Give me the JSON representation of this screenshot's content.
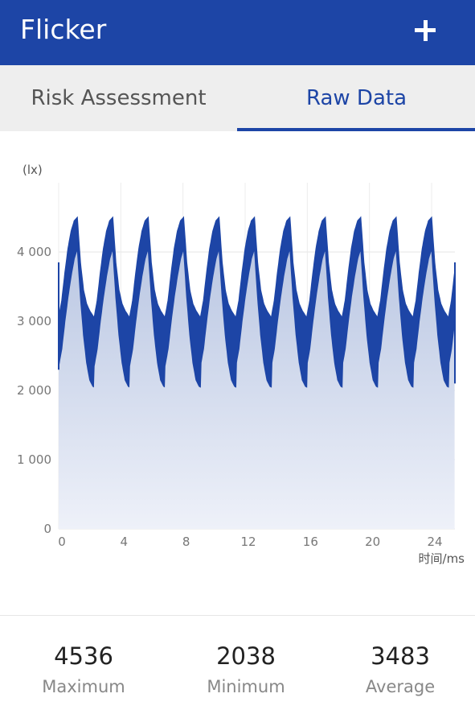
{
  "app_bar": {
    "title": "Flicker",
    "add_icon": "plus-icon"
  },
  "tabs": [
    {
      "label": "Risk Assessment",
      "selected": false
    },
    {
      "label": "Raw Data",
      "selected": true
    }
  ],
  "colors": {
    "primary": "#1d45a6",
    "tab_bg": "#eeeeee",
    "fill_top": "#b4c2e0",
    "fill_bottom": "#eef1f9"
  },
  "chart_data": {
    "type": "area",
    "ylabel": "(lx)",
    "xlabel": "时间/ms",
    "ylim": [
      0,
      5000
    ],
    "xlim": [
      0,
      25.5
    ],
    "y_ticks": [
      "0",
      "1 000",
      "2 000",
      "3 000",
      "4 000"
    ],
    "y_tick_values": [
      0,
      1000,
      2000,
      3000,
      4000
    ],
    "x_ticks": [
      "0",
      "4",
      "8",
      "12",
      "16",
      "20",
      "24"
    ],
    "x_tick_values": [
      0,
      4,
      8,
      12,
      16,
      20,
      24
    ],
    "grid": true,
    "series": [
      {
        "period_ms": 2.28,
        "peak": 4500,
        "trough": 2050,
        "x": [
          0,
          0.2,
          0.4,
          0.6,
          0.8,
          1.0,
          1.2,
          1.4,
          1.6,
          1.8,
          2.0,
          2.2,
          2.28
        ],
        "upper": [
          3050,
          3300,
          3700,
          4050,
          4300,
          4450,
          4500,
          3850,
          3450,
          3250,
          3150,
          3080,
          3050
        ],
        "lower": [
          2350,
          2600,
          3000,
          3350,
          3650,
          3900,
          4050,
          3350,
          2800,
          2400,
          2150,
          2060,
          2050
        ]
      }
    ]
  },
  "stats": [
    {
      "value": "4536",
      "label": "Maximum"
    },
    {
      "value": "2038",
      "label": "Minimum"
    },
    {
      "value": "3483",
      "label": "Average"
    }
  ]
}
